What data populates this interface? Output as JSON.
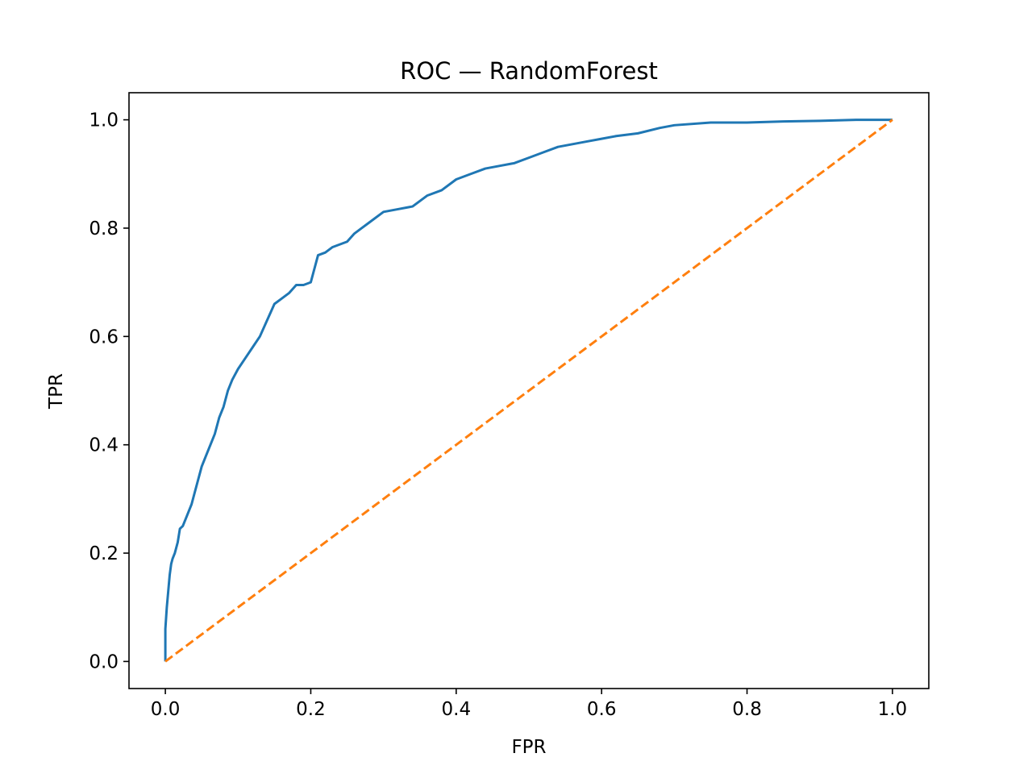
{
  "chart_data": {
    "type": "line",
    "title": "ROC — RandomForest",
    "xlabel": "FPR",
    "ylabel": "TPR",
    "xlim": [
      -0.05,
      1.05
    ],
    "ylim": [
      -0.05,
      1.05
    ],
    "grid": false,
    "legend": "none",
    "xticks": [
      0.0,
      0.2,
      0.4,
      0.6,
      0.8,
      1.0
    ],
    "yticks": [
      0.0,
      0.2,
      0.4,
      0.6,
      0.8,
      1.0
    ],
    "xtick_labels": [
      "0.0",
      "0.2",
      "0.4",
      "0.6",
      "0.8",
      "1.0"
    ],
    "ytick_labels": [
      "0.0",
      "0.2",
      "0.4",
      "0.6",
      "0.8",
      "1.0"
    ],
    "series": [
      {
        "color": "#1f77b4",
        "style": "solid",
        "x": [
          0.0,
          0.0,
          0.002,
          0.004,
          0.006,
          0.008,
          0.01,
          0.013,
          0.017,
          0.02,
          0.024,
          0.03,
          0.036,
          0.04,
          0.046,
          0.05,
          0.056,
          0.062,
          0.068,
          0.074,
          0.08,
          0.086,
          0.092,
          0.1,
          0.11,
          0.12,
          0.13,
          0.14,
          0.15,
          0.16,
          0.17,
          0.18,
          0.19,
          0.2,
          0.21,
          0.22,
          0.23,
          0.24,
          0.25,
          0.26,
          0.27,
          0.28,
          0.3,
          0.32,
          0.34,
          0.36,
          0.38,
          0.4,
          0.42,
          0.44,
          0.46,
          0.48,
          0.5,
          0.52,
          0.54,
          0.56,
          0.58,
          0.6,
          0.62,
          0.65,
          0.68,
          0.7,
          0.75,
          0.8,
          0.85,
          0.9,
          0.95,
          1.0
        ],
        "y": [
          0.0,
          0.06,
          0.1,
          0.13,
          0.16,
          0.18,
          0.19,
          0.2,
          0.22,
          0.245,
          0.25,
          0.27,
          0.29,
          0.31,
          0.34,
          0.36,
          0.38,
          0.4,
          0.42,
          0.45,
          0.47,
          0.5,
          0.52,
          0.54,
          0.56,
          0.58,
          0.6,
          0.63,
          0.66,
          0.67,
          0.68,
          0.695,
          0.695,
          0.7,
          0.75,
          0.755,
          0.765,
          0.77,
          0.775,
          0.79,
          0.8,
          0.81,
          0.83,
          0.835,
          0.84,
          0.86,
          0.87,
          0.89,
          0.9,
          0.91,
          0.915,
          0.92,
          0.93,
          0.94,
          0.95,
          0.955,
          0.96,
          0.965,
          0.97,
          0.975,
          0.985,
          0.99,
          0.995,
          0.995,
          0.997,
          0.998,
          1.0,
          1.0
        ]
      },
      {
        "color": "#ff7f0e",
        "style": "dashed",
        "x": [
          0.0,
          1.0
        ],
        "y": [
          0.0,
          1.0
        ]
      }
    ]
  }
}
